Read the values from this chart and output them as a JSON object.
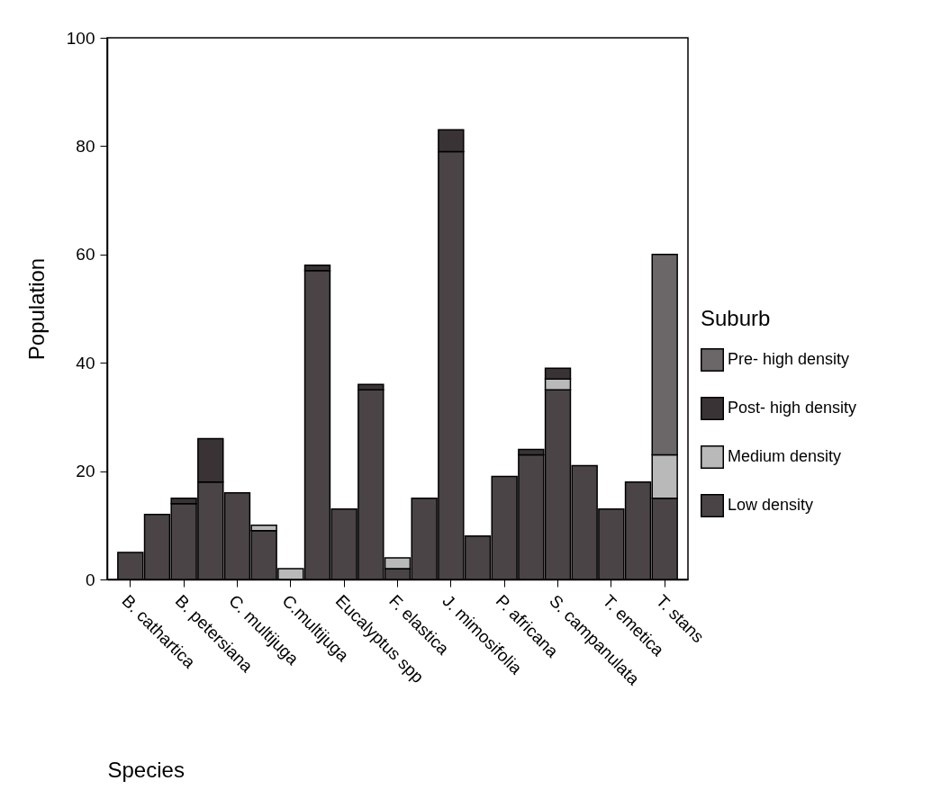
{
  "chart_data": {
    "type": "bar",
    "stacked": true,
    "xlabel": "Species",
    "ylabel": "Population",
    "legend_title": "Suburb",
    "legend": "right",
    "grid": false,
    "categories": [
      "B. cathartica",
      null,
      "B. petersiana",
      null,
      "C. multijuga",
      null,
      "C.multijuga",
      null,
      "Eucalyptus spp",
      null,
      "F. elastica",
      null,
      "J. mimosifolia",
      null,
      "P. africana",
      null,
      "S. campanulata",
      null,
      "T. emetica",
      null,
      "T. stans"
    ],
    "ylim": [
      0,
      100
    ],
    "yticks": [
      0,
      20,
      40,
      60,
      80,
      100
    ],
    "series": [
      {
        "name": "Low density",
        "color": "#4a4446",
        "values": [
          5,
          12,
          14,
          18,
          16,
          9,
          null,
          57,
          13,
          35,
          2,
          15,
          79,
          8,
          19,
          23,
          35,
          21,
          13,
          18,
          15
        ]
      },
      {
        "name": "Medium density",
        "color": "#b9b9b9",
        "values": [
          null,
          null,
          null,
          null,
          null,
          1,
          2,
          null,
          null,
          null,
          2,
          null,
          null,
          null,
          null,
          null,
          2,
          null,
          null,
          null,
          8
        ]
      },
      {
        "name": "Post- high density",
        "color": "#393335",
        "values": [
          null,
          null,
          1,
          8,
          null,
          null,
          null,
          1,
          null,
          1,
          null,
          null,
          4,
          null,
          null,
          1,
          2,
          null,
          null,
          null,
          null
        ]
      },
      {
        "name": "Pre- high density",
        "color": "#6b6769",
        "values": [
          null,
          null,
          null,
          null,
          null,
          null,
          null,
          null,
          null,
          null,
          null,
          null,
          null,
          null,
          null,
          null,
          null,
          null,
          null,
          null,
          37
        ]
      }
    ]
  }
}
